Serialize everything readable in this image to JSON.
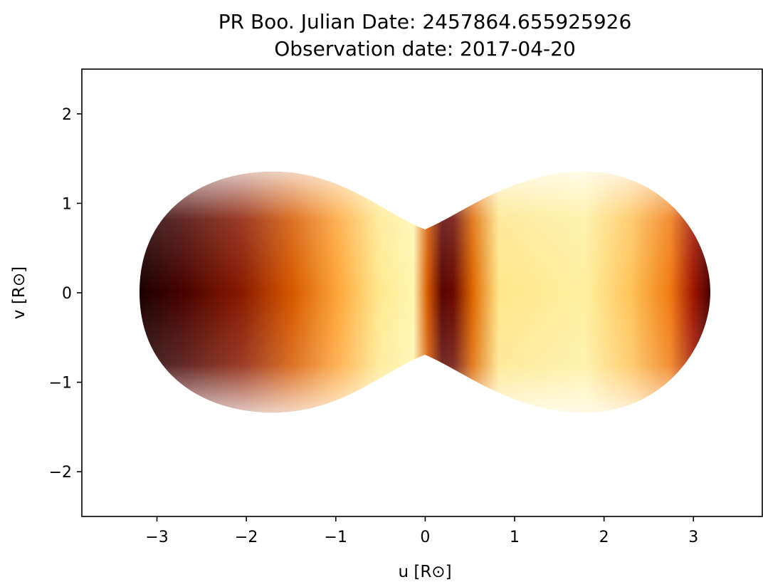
{
  "chart_data": {
    "type": "mesh",
    "title": [
      "PR Boo. Julian Date: 2457864.655925926",
      "Observation date: 2017-04-20"
    ],
    "xlabel": "u [R⊙]",
    "ylabel": "v [R⊙]",
    "xlim": [
      -3.84,
      3.77
    ],
    "ylim": [
      -2.5,
      2.5
    ],
    "xticks": [
      {
        "value": -3,
        "label": "−3"
      },
      {
        "value": -2,
        "label": "−2"
      },
      {
        "value": -1,
        "label": "−1"
      },
      0,
      1,
      2,
      3
    ],
    "yticks": [
      {
        "value": -2,
        "label": "−2"
      },
      {
        "value": -1,
        "label": "−1"
      },
      0,
      1,
      2
    ],
    "grid": false
  }
}
